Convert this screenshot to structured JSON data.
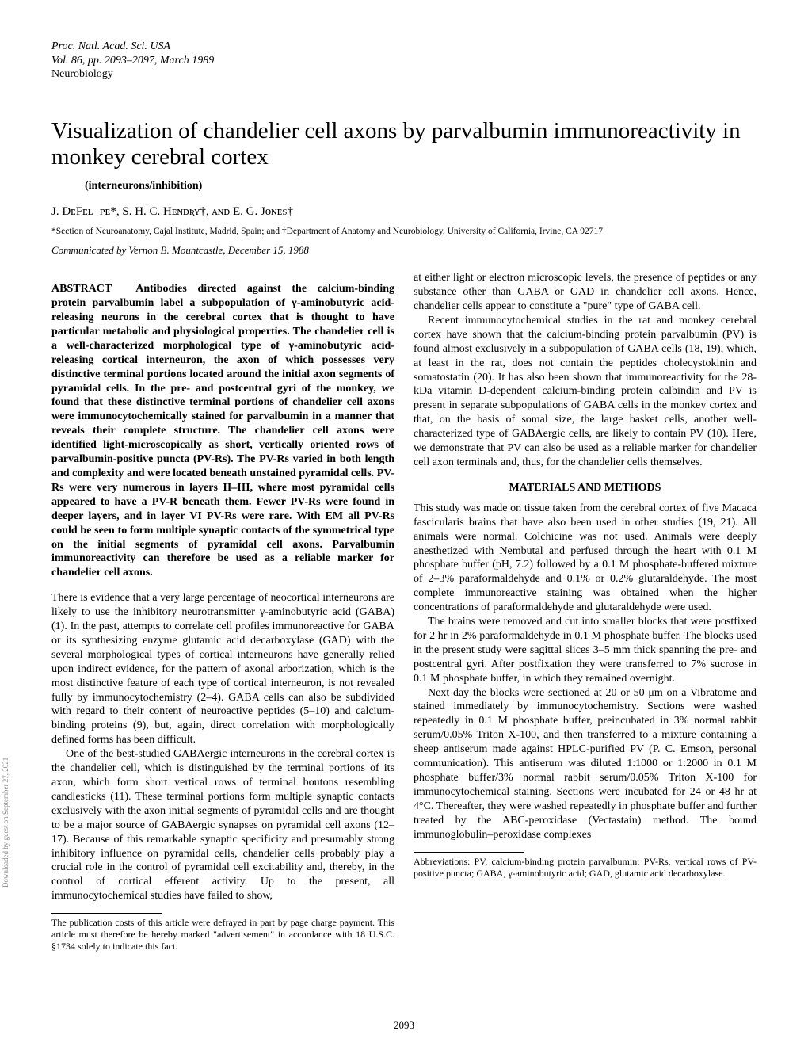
{
  "journal": {
    "name": "Proc. Natl. Acad. Sci. USA",
    "volume_line": "Vol. 86, pp. 2093–2097, March 1989",
    "section": "Neurobiology"
  },
  "title": "Visualization of chandelier cell axons by parvalbumin immunoreactivity in monkey cerebral cortex",
  "keywords": "(interneurons/inhibition)",
  "authors_html": "J. DᴇFᴇʟɪᴘᴇ*, S. H. C. Hᴇɴᴅʀʏ†, ᴀɴᴅ E. G. Jᴏɴᴇs†",
  "affiliations": "*Section of Neuroanatomy, Cajal Institute, Madrid, Spain; and †Department of Anatomy and Neurobiology, University of California, Irvine, CA 92717",
  "communicated": "Communicated by Vernon B. Mountcastle, December 15, 1988",
  "abstract_label": "ABSTRACT",
  "abstract": "Antibodies directed against the calcium-binding protein parvalbumin label a subpopulation of γ-aminobutyric acid-releasing neurons in the cerebral cortex that is thought to have particular metabolic and physiological properties. The chandelier cell is a well-characterized morphological type of γ-aminobutyric acid-releasing cortical interneuron, the axon of which possesses very distinctive terminal portions located around the initial axon segments of pyramidal cells. In the pre- and postcentral gyri of the monkey, we found that these distinctive terminal portions of chandelier cell axons were immunocytochemically stained for parvalbumin in a manner that reveals their complete structure. The chandelier cell axons were identified light-microscopically as short, vertically oriented rows of parvalbumin-positive puncta (PV-Rs). The PV-Rs varied in both length and complexity and were located beneath unstained pyramidal cells. PV-Rs were very numerous in layers II–III, where most pyramidal cells appeared to have a PV-R beneath them. Fewer PV-Rs were found in deeper layers, and in layer VI PV-Rs were rare. With EM all PV-Rs could be seen to form multiple synaptic contacts of the symmetrical type on the initial segments of pyramidal cell axons. Parvalbumin immunoreactivity can therefore be used as a reliable marker for chandelier cell axons.",
  "body": {
    "p1": "There is evidence that a very large percentage of neocortical interneurons are likely to use the inhibitory neurotransmitter γ-aminobutyric acid (GABA) (1). In the past, attempts to correlate cell profiles immunoreactive for GABA or its synthesizing enzyme glutamic acid decarboxylase (GAD) with the several morphological types of cortical interneurons have generally relied upon indirect evidence, for the pattern of axonal arborization, which is the most distinctive feature of each type of cortical interneuron, is not revealed fully by immunocytochemistry (2–4). GABA cells can also be subdivided with regard to their content of neuroactive peptides (5–10) and calcium-binding proteins (9), but, again, direct correlation with morphologically defined forms has been difficult.",
    "p2": "One of the best-studied GABAergic interneurons in the cerebral cortex is the chandelier cell, which is distinguished by the terminal portions of its axon, which form short vertical rows of terminal boutons resembling candlesticks (11). These terminal portions form multiple synaptic contacts exclusively with the axon initial segments of pyramidal cells and are thought to be a major source of GABAergic synapses on pyramidal cell axons (12–17). Because of this remarkable synaptic specificity and presumably strong inhibitory influence on pyramidal cells, chandelier cells probably play a crucial role in the control of pyramidal cell excitability and, thereby, in the control of cortical efferent activity. Up to the present, all immunocytochemical studies have failed to show,",
    "p3": "at either light or electron microscopic levels, the presence of peptides or any substance other than GABA or GAD in chandelier cell axons. Hence, chandelier cells appear to constitute a \"pure\" type of GABA cell.",
    "p4": "Recent immunocytochemical studies in the rat and monkey cerebral cortex have shown that the calcium-binding protein parvalbumin (PV) is found almost exclusively in a subpopulation of GABA cells (18, 19), which, at least in the rat, does not contain the peptides cholecystokinin and somatostatin (20). It has also been shown that immunoreactivity for the 28-kDa vitamin D-dependent calcium-binding protein calbindin and PV is present in separate subpopulations of GABA cells in the monkey cortex and that, on the basis of somal size, the large basket cells, another well-characterized type of GABAergic cells, are likely to contain PV (10). Here, we demonstrate that PV can also be used as a reliable marker for chandelier cell axon terminals and, thus, for the chandelier cells themselves.",
    "methods_head": "MATERIALS AND METHODS",
    "m1": "This study was made on tissue taken from the cerebral cortex of five Macaca fascicularis brains that have also been used in other studies (19, 21). All animals were normal. Colchicine was not used. Animals were deeply anesthetized with Nembutal and perfused through the heart with 0.1 M phosphate buffer (pH, 7.2) followed by a 0.1 M phosphate-buffered mixture of 2–3% paraformaldehyde and 0.1% or 0.2% glutaraldehyde. The most complete immunoreactive staining was obtained when the higher concentrations of paraformaldehyde and glutaraldehyde were used.",
    "m2": "The brains were removed and cut into smaller blocks that were postfixed for 2 hr in 2% paraformaldehyde in 0.1 M phosphate buffer. The blocks used in the present study were sagittal slices 3–5 mm thick spanning the pre- and postcentral gyri. After postfixation they were transferred to 7% sucrose in 0.1 M phosphate buffer, in which they remained overnight.",
    "m3": "Next day the blocks were sectioned at 20 or 50 μm on a Vibratome and stained immediately by immunocytochemistry. Sections were washed repeatedly in 0.1 M phosphate buffer, preincubated in 3% normal rabbit serum/0.05% Triton X-100, and then transferred to a mixture containing a sheep antiserum made against HPLC-purified PV (P. C. Emson, personal communication). This antiserum was diluted 1:1000 or 1:2000 in 0.1 M phosphate buffer/3% normal rabbit serum/0.05% Triton X-100 for immunocytochemical staining. Sections were incubated for 24 or 48 hr at 4°C. Thereafter, they were washed repeatedly in phosphate buffer and further treated by the ABC-peroxidase (Vectastain) method. The bound immunoglobulin–peroxidase complexes"
  },
  "footnote_left": "The publication costs of this article were defrayed in part by page charge payment. This article must therefore be hereby marked \"advertisement\" in accordance with 18 U.S.C. §1734 solely to indicate this fact.",
  "footnote_right": "Abbreviations: PV, calcium-binding protein parvalbumin; PV-Rs, vertical rows of PV-positive puncta; GABA, γ-aminobutyric acid; GAD, glutamic acid decarboxylase.",
  "page_number": "2093",
  "sidebar": "Downloaded by guest on September 27, 2021"
}
